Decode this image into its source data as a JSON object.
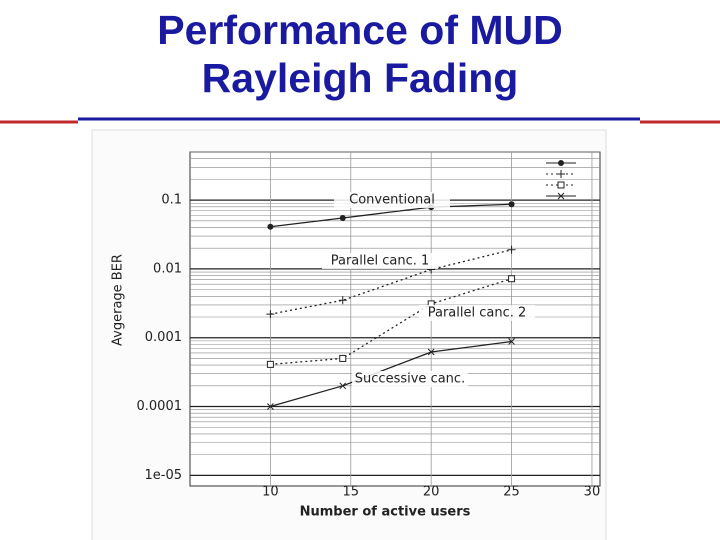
{
  "title": [
    "Performance of MUD",
    "Rayleigh Fading"
  ],
  "chart_data": {
    "type": "line",
    "x_label": "Number of active users",
    "y_label": "Avgerage BER",
    "x": [
      10,
      14.5,
      20,
      25
    ],
    "series": [
      {
        "name": "Conventional",
        "color": "#222222",
        "dash": "solid",
        "marker": "circle",
        "values": [
          0.041,
          0.055,
          0.079,
          0.087
        ]
      },
      {
        "name": "Parallel canc. 1",
        "color": "#222222",
        "dash": "dotted",
        "marker": "plus",
        "values": [
          0.0022,
          0.0035,
          0.0098,
          0.019
        ]
      },
      {
        "name": "Parallel canc. 2",
        "color": "#222222",
        "dash": "dotted",
        "marker": "square",
        "values": [
          0.00041,
          0.0005,
          0.0031,
          0.0072
        ]
      },
      {
        "name": "Successive canc.",
        "color": "#222222",
        "dash": "solid",
        "marker": "cross",
        "values": [
          0.0001,
          0.0002,
          0.00062,
          0.00088
        ]
      }
    ],
    "xlim": [
      5,
      30.5
    ],
    "xticks": [
      10,
      15,
      20,
      25,
      30
    ],
    "ylim": [
      7e-06,
      0.5
    ],
    "log_y": true,
    "yticks": [
      {
        "value": 1e-05,
        "label": "1e-05"
      },
      0.0001,
      0.001,
      0.01,
      0.1
    ],
    "grid": true,
    "legend": "upper right"
  }
}
